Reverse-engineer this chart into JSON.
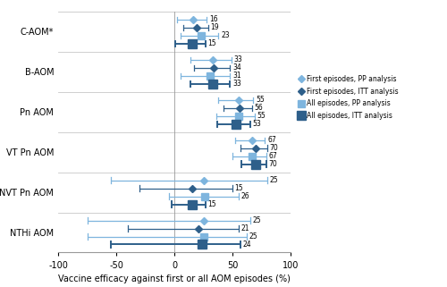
{
  "categories": [
    "C-AOM*",
    "B-AOM",
    "Pn AOM",
    "VT Pn AOM",
    "NVT Pn AOM",
    "NTHi AOM"
  ],
  "series": [
    {
      "name": "First episodes, PP analysis",
      "values": [
        16,
        33,
        55,
        67,
        25,
        25
      ],
      "ci_low": [
        2,
        14,
        38,
        52,
        -55,
        -75
      ],
      "ci_high": [
        28,
        49,
        68,
        78,
        80,
        65
      ]
    },
    {
      "name": "First episodes, ITT analysis",
      "values": [
        19,
        34,
        56,
        70,
        15,
        21
      ],
      "ci_low": [
        8,
        17,
        42,
        57,
        -30,
        -40
      ],
      "ci_high": [
        29,
        48,
        67,
        80,
        50,
        55
      ]
    },
    {
      "name": "All episodes, PP analysis",
      "values": [
        23,
        31,
        55,
        67,
        26,
        25
      ],
      "ci_low": [
        5,
        5,
        36,
        50,
        -5,
        -75
      ],
      "ci_high": [
        38,
        48,
        69,
        79,
        55,
        62
      ]
    },
    {
      "name": "All episodes, ITT analysis",
      "values": [
        15,
        33,
        53,
        70,
        15,
        24
      ],
      "ci_low": [
        1,
        14,
        37,
        58,
        -2,
        -55
      ],
      "ci_high": [
        27,
        48,
        65,
        79,
        27,
        57
      ]
    }
  ],
  "xlim": [
    -100,
    100
  ],
  "xticks": [
    -100,
    -50,
    0,
    50,
    100
  ],
  "xlabel": "Vaccine efficacy against first or all AOM episodes (%)",
  "bg_color": "#ffffff",
  "grid_color": "#c8c8c8",
  "light_blue": "#7EB5DE",
  "dark_blue": "#2E5F8A",
  "label_fontsize": 7,
  "axis_fontsize": 7,
  "offsets": [
    0.3,
    0.1,
    -0.1,
    -0.3
  ]
}
